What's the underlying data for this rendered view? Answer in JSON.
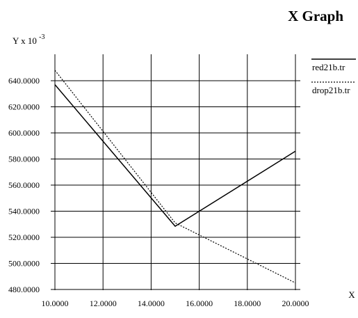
{
  "chart_data": {
    "type": "line",
    "title": "X Graph",
    "xlabel": "X",
    "ylabel_base": "Y x 10",
    "ylabel_exp": "-3",
    "xlim": [
      10,
      20
    ],
    "ylim": [
      480,
      640
    ],
    "x_ticks": [
      "10.0000",
      "12.0000",
      "14.0000",
      "16.0000",
      "18.0000",
      "20.0000"
    ],
    "y_ticks": [
      "480.0000",
      "500.0000",
      "520.0000",
      "540.0000",
      "560.0000",
      "580.0000",
      "600.0000",
      "620.0000",
      "640.0000"
    ],
    "grid": true,
    "legend_position": "top-right",
    "series": [
      {
        "name": "red21b.tr",
        "style": "solid",
        "color": "#000000",
        "x": [
          10,
          15,
          20
        ],
        "y": [
          637,
          528.5,
          586
        ]
      },
      {
        "name": "drop21b.tr",
        "style": "dotted",
        "color": "#000000",
        "x": [
          10,
          15,
          20
        ],
        "y": [
          648,
          531,
          485
        ]
      }
    ]
  }
}
